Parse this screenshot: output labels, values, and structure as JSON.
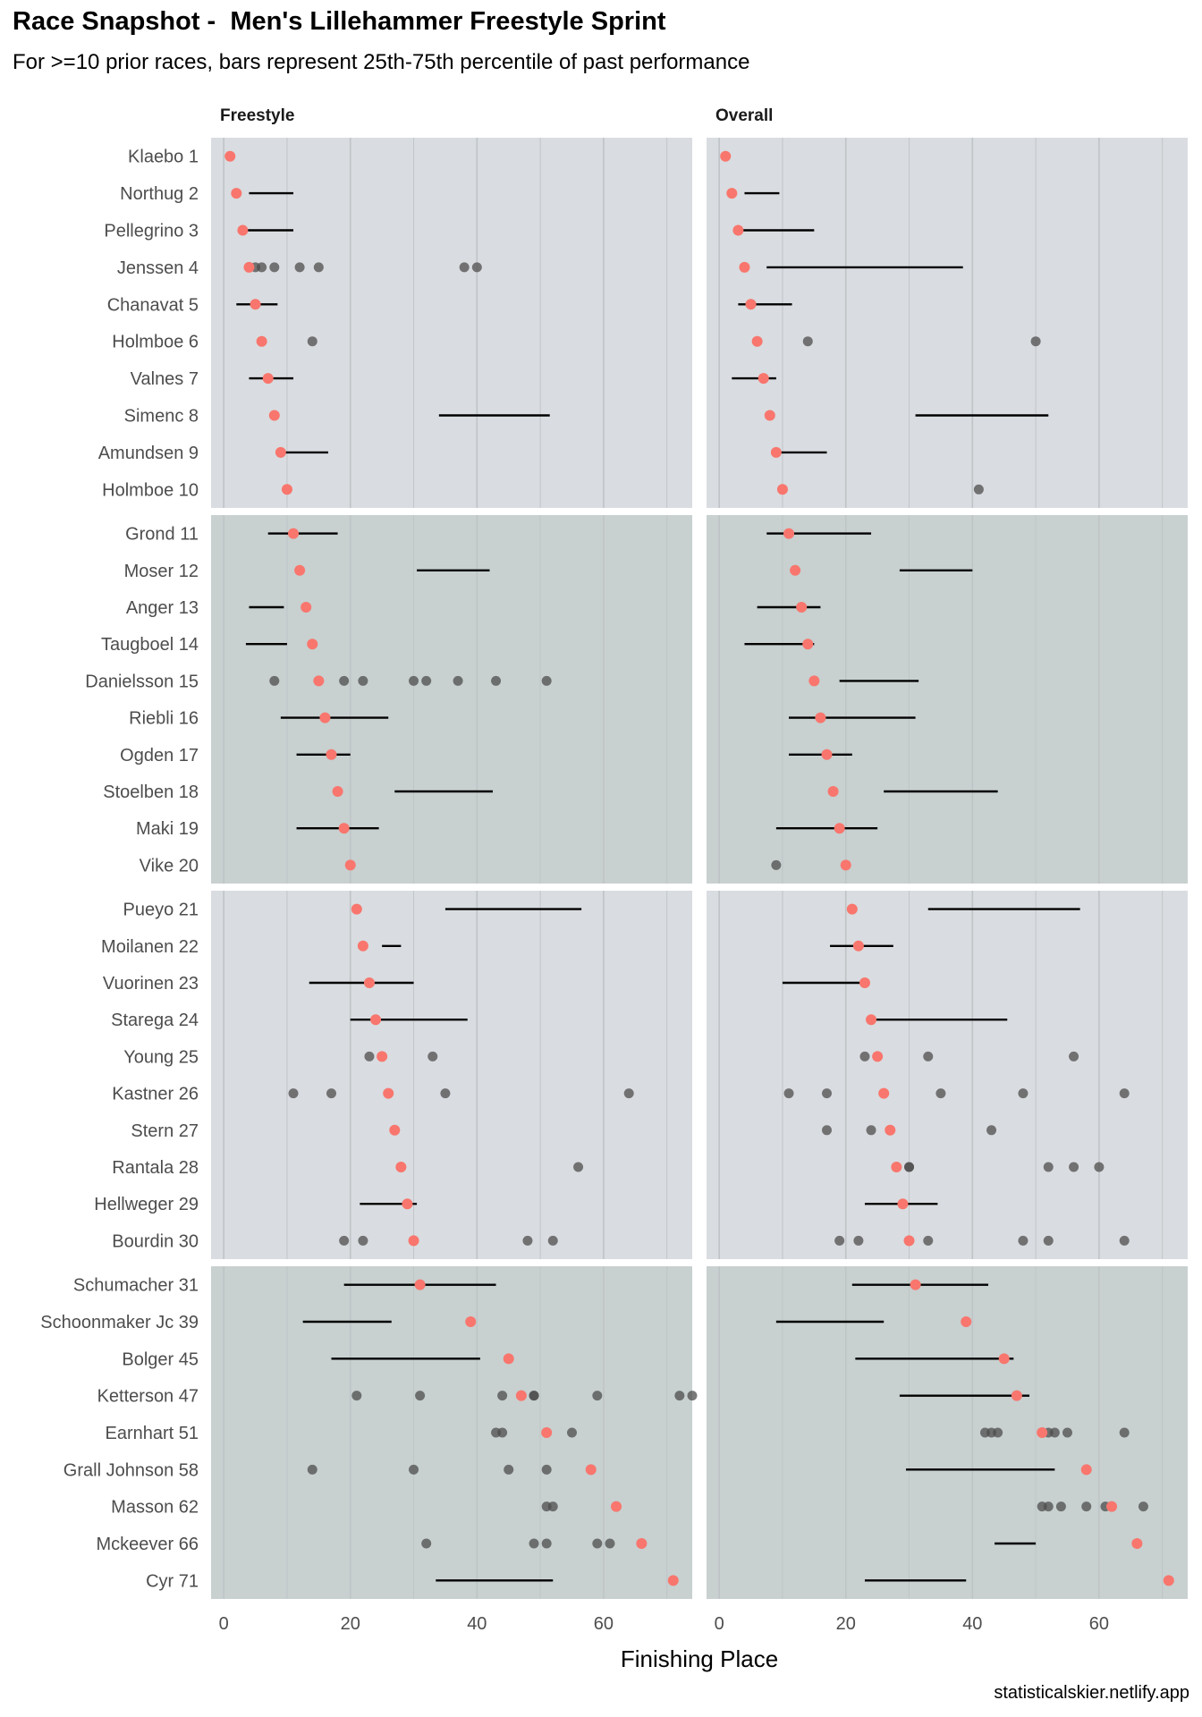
{
  "header": {
    "title": "Race Snapshot -  Men's Lillehammer Freestyle Sprint",
    "subtitle": "For >=10 prior races, bars represent 25th-75th percentile of past performance"
  },
  "footer": {
    "credit": "statisticalskier.netlify.app"
  },
  "colors": {
    "current_result": "#F8766D",
    "past_result": "#4d4d4d",
    "range_bar": "#000000",
    "band_light": "#d9dce0",
    "band_dark": "#c8d0d0",
    "grid": "#bfc4c6"
  },
  "chart_data": {
    "type": "scatter",
    "xlabel": "Finishing Place",
    "x_ticks": [
      0,
      20,
      40,
      60
    ],
    "xlim": [
      -2,
      74
    ],
    "panels": [
      "Freestyle",
      "Overall"
    ],
    "skiers": [
      {
        "label": "Klaebo 1",
        "place": 1,
        "Freestyle": {
          "range": null,
          "past": []
        },
        "Overall": {
          "range": null,
          "past": []
        }
      },
      {
        "label": "Northug 2",
        "place": 2,
        "Freestyle": {
          "range": [
            4,
            11
          ],
          "past": []
        },
        "Overall": {
          "range": [
            4,
            9.5
          ],
          "past": []
        }
      },
      {
        "label": "Pellegrino 3",
        "place": 3,
        "Freestyle": {
          "range": [
            2.5,
            11
          ],
          "past": []
        },
        "Overall": {
          "range": [
            3.5,
            15
          ],
          "past": []
        }
      },
      {
        "label": "Jenssen 4",
        "place": 4,
        "Freestyle": {
          "range": null,
          "past": [
            5,
            6,
            8,
            12,
            15,
            38,
            40
          ]
        },
        "Overall": {
          "range": [
            7.5,
            38.5
          ],
          "past": []
        }
      },
      {
        "label": "Chanavat 5",
        "place": 5,
        "Freestyle": {
          "range": [
            2,
            8.5
          ],
          "past": []
        },
        "Overall": {
          "range": [
            3,
            11.5
          ],
          "past": []
        }
      },
      {
        "label": "Holmboe 6",
        "place": 6,
        "Freestyle": {
          "range": null,
          "past": [
            14
          ]
        },
        "Overall": {
          "range": null,
          "past": [
            14,
            50
          ]
        }
      },
      {
        "label": "Valnes 7",
        "place": 7,
        "Freestyle": {
          "range": [
            4,
            11
          ],
          "past": []
        },
        "Overall": {
          "range": [
            2,
            9
          ],
          "past": []
        }
      },
      {
        "label": "Simenc 8",
        "place": 8,
        "Freestyle": {
          "range": [
            34,
            51.5
          ],
          "past": []
        },
        "Overall": {
          "range": [
            31,
            52
          ],
          "past": []
        }
      },
      {
        "label": "Amundsen 9",
        "place": 9,
        "Freestyle": {
          "range": [
            9.5,
            16.5
          ],
          "past": []
        },
        "Overall": {
          "range": [
            9,
            17
          ],
          "past": []
        }
      },
      {
        "label": "Holmboe 10",
        "place": 10,
        "Freestyle": {
          "range": null,
          "past": []
        },
        "Overall": {
          "range": null,
          "past": [
            41
          ]
        }
      },
      {
        "label": "Grond 11",
        "place": 11,
        "Freestyle": {
          "range": [
            7,
            18
          ],
          "past": []
        },
        "Overall": {
          "range": [
            7.5,
            24
          ],
          "past": []
        }
      },
      {
        "label": "Moser 12",
        "place": 12,
        "Freestyle": {
          "range": [
            30.5,
            42
          ],
          "past": []
        },
        "Overall": {
          "range": [
            28.5,
            40
          ],
          "past": []
        }
      },
      {
        "label": "Anger 13",
        "place": 13,
        "Freestyle": {
          "range": [
            4,
            9.5
          ],
          "past": []
        },
        "Overall": {
          "range": [
            6,
            16
          ],
          "past": []
        }
      },
      {
        "label": "Taugboel 14",
        "place": 14,
        "Freestyle": {
          "range": [
            3.5,
            10
          ],
          "past": []
        },
        "Overall": {
          "range": [
            4,
            15
          ],
          "past": []
        }
      },
      {
        "label": "Danielsson 15",
        "place": 15,
        "Freestyle": {
          "range": null,
          "past": [
            8,
            19,
            22,
            30,
            32,
            37,
            43,
            51
          ]
        },
        "Overall": {
          "range": [
            19,
            31.5
          ],
          "past": []
        }
      },
      {
        "label": "Riebli 16",
        "place": 16,
        "Freestyle": {
          "range": [
            9,
            26
          ],
          "past": []
        },
        "Overall": {
          "range": [
            11,
            31
          ],
          "past": []
        }
      },
      {
        "label": "Ogden 17",
        "place": 17,
        "Freestyle": {
          "range": [
            11.5,
            20
          ],
          "past": []
        },
        "Overall": {
          "range": [
            11,
            21
          ],
          "past": []
        }
      },
      {
        "label": "Stoelben 18",
        "place": 18,
        "Freestyle": {
          "range": [
            27,
            42.5
          ],
          "past": []
        },
        "Overall": {
          "range": [
            26,
            44
          ],
          "past": []
        }
      },
      {
        "label": "Maki 19",
        "place": 19,
        "Freestyle": {
          "range": [
            11.5,
            24.5
          ],
          "past": []
        },
        "Overall": {
          "range": [
            9,
            25
          ],
          "past": []
        }
      },
      {
        "label": "Vike 20",
        "place": 20,
        "Freestyle": {
          "range": null,
          "past": []
        },
        "Overall": {
          "range": null,
          "past": [
            9
          ]
        }
      },
      {
        "label": "Pueyo 21",
        "place": 21,
        "Freestyle": {
          "range": [
            35,
            56.5
          ],
          "past": []
        },
        "Overall": {
          "range": [
            33,
            57
          ],
          "past": []
        }
      },
      {
        "label": "Moilanen 22",
        "place": 22,
        "Freestyle": {
          "range": [
            25,
            28
          ],
          "past": []
        },
        "Overall": {
          "range": [
            17.5,
            27.5
          ],
          "past": []
        }
      },
      {
        "label": "Vuorinen 23",
        "place": 23,
        "Freestyle": {
          "range": [
            13.5,
            30
          ],
          "past": []
        },
        "Overall": {
          "range": [
            10,
            23
          ],
          "past": []
        }
      },
      {
        "label": "Starega 24",
        "place": 24,
        "Freestyle": {
          "range": [
            20,
            38.5
          ],
          "past": []
        },
        "Overall": {
          "range": [
            24,
            45.5
          ],
          "past": []
        }
      },
      {
        "label": "Young 25",
        "place": 25,
        "Freestyle": {
          "range": null,
          "past": [
            23,
            33
          ]
        },
        "Overall": {
          "range": null,
          "past": [
            23,
            33,
            56
          ]
        }
      },
      {
        "label": "Kastner 26",
        "place": 26,
        "Freestyle": {
          "range": null,
          "past": [
            11,
            17,
            35,
            64
          ]
        },
        "Overall": {
          "range": null,
          "past": [
            11,
            17,
            35,
            48,
            64
          ]
        }
      },
      {
        "label": "Stern 27",
        "place": 27,
        "Freestyle": {
          "range": null,
          "past": []
        },
        "Overall": {
          "range": null,
          "past": [
            17,
            24,
            43
          ]
        }
      },
      {
        "label": "Rantala 28",
        "place": 28,
        "Freestyle": {
          "range": null,
          "past": [
            56
          ]
        },
        "Overall": {
          "range": null,
          "past": [
            30,
            30,
            52,
            56,
            60
          ]
        }
      },
      {
        "label": "Hellweger 29",
        "place": 29,
        "Freestyle": {
          "range": [
            21.5,
            30.5
          ],
          "past": []
        },
        "Overall": {
          "range": [
            23,
            34.5
          ],
          "past": []
        }
      },
      {
        "label": "Bourdin 30",
        "place": 30,
        "Freestyle": {
          "range": null,
          "past": [
            19,
            22,
            48,
            52
          ]
        },
        "Overall": {
          "range": null,
          "past": [
            19,
            22,
            33,
            48,
            52,
            64
          ]
        }
      },
      {
        "label": "Schumacher 31",
        "place": 31,
        "Freestyle": {
          "range": [
            19,
            43
          ],
          "past": []
        },
        "Overall": {
          "range": [
            21,
            42.5
          ],
          "past": []
        }
      },
      {
        "label": "Schoonmaker Jc 39",
        "place": 39,
        "Freestyle": {
          "range": [
            12.5,
            26.5
          ],
          "past": []
        },
        "Overall": {
          "range": [
            9,
            26
          ],
          "past": []
        }
      },
      {
        "label": "Bolger 45",
        "place": 45,
        "Freestyle": {
          "range": [
            17,
            40.5
          ],
          "past": []
        },
        "Overall": {
          "range": [
            21.5,
            46.5
          ],
          "past": []
        }
      },
      {
        "label": "Ketterson 47",
        "place": 47,
        "Freestyle": {
          "range": null,
          "past": [
            21,
            31,
            44,
            49,
            49,
            59,
            72,
            74
          ]
        },
        "Overall": {
          "range": [
            28.5,
            49
          ],
          "past": []
        }
      },
      {
        "label": "Earnhart 51",
        "place": 51,
        "Freestyle": {
          "range": null,
          "past": [
            43,
            44,
            55
          ]
        },
        "Overall": {
          "range": null,
          "past": [
            42,
            43,
            44,
            52,
            53,
            55,
            64
          ]
        }
      },
      {
        "label": "Grall Johnson 58",
        "place": 58,
        "Freestyle": {
          "range": null,
          "past": [
            14,
            30,
            45,
            51
          ]
        },
        "Overall": {
          "range": [
            29.5,
            53
          ],
          "past": []
        }
      },
      {
        "label": "Masson 62",
        "place": 62,
        "Freestyle": {
          "range": null,
          "past": [
            51,
            52
          ]
        },
        "Overall": {
          "range": null,
          "past": [
            51,
            52,
            54,
            58,
            61,
            67
          ]
        }
      },
      {
        "label": "Mckeever 66",
        "place": 66,
        "Freestyle": {
          "range": null,
          "past": [
            32,
            49,
            51,
            59,
            61
          ]
        },
        "Overall": {
          "range": [
            43.5,
            50
          ],
          "past": []
        }
      },
      {
        "label": "Cyr 71",
        "place": 71,
        "Freestyle": {
          "range": [
            33.5,
            52
          ],
          "past": []
        },
        "Overall": {
          "range": [
            23,
            39
          ],
          "past": []
        }
      }
    ]
  }
}
